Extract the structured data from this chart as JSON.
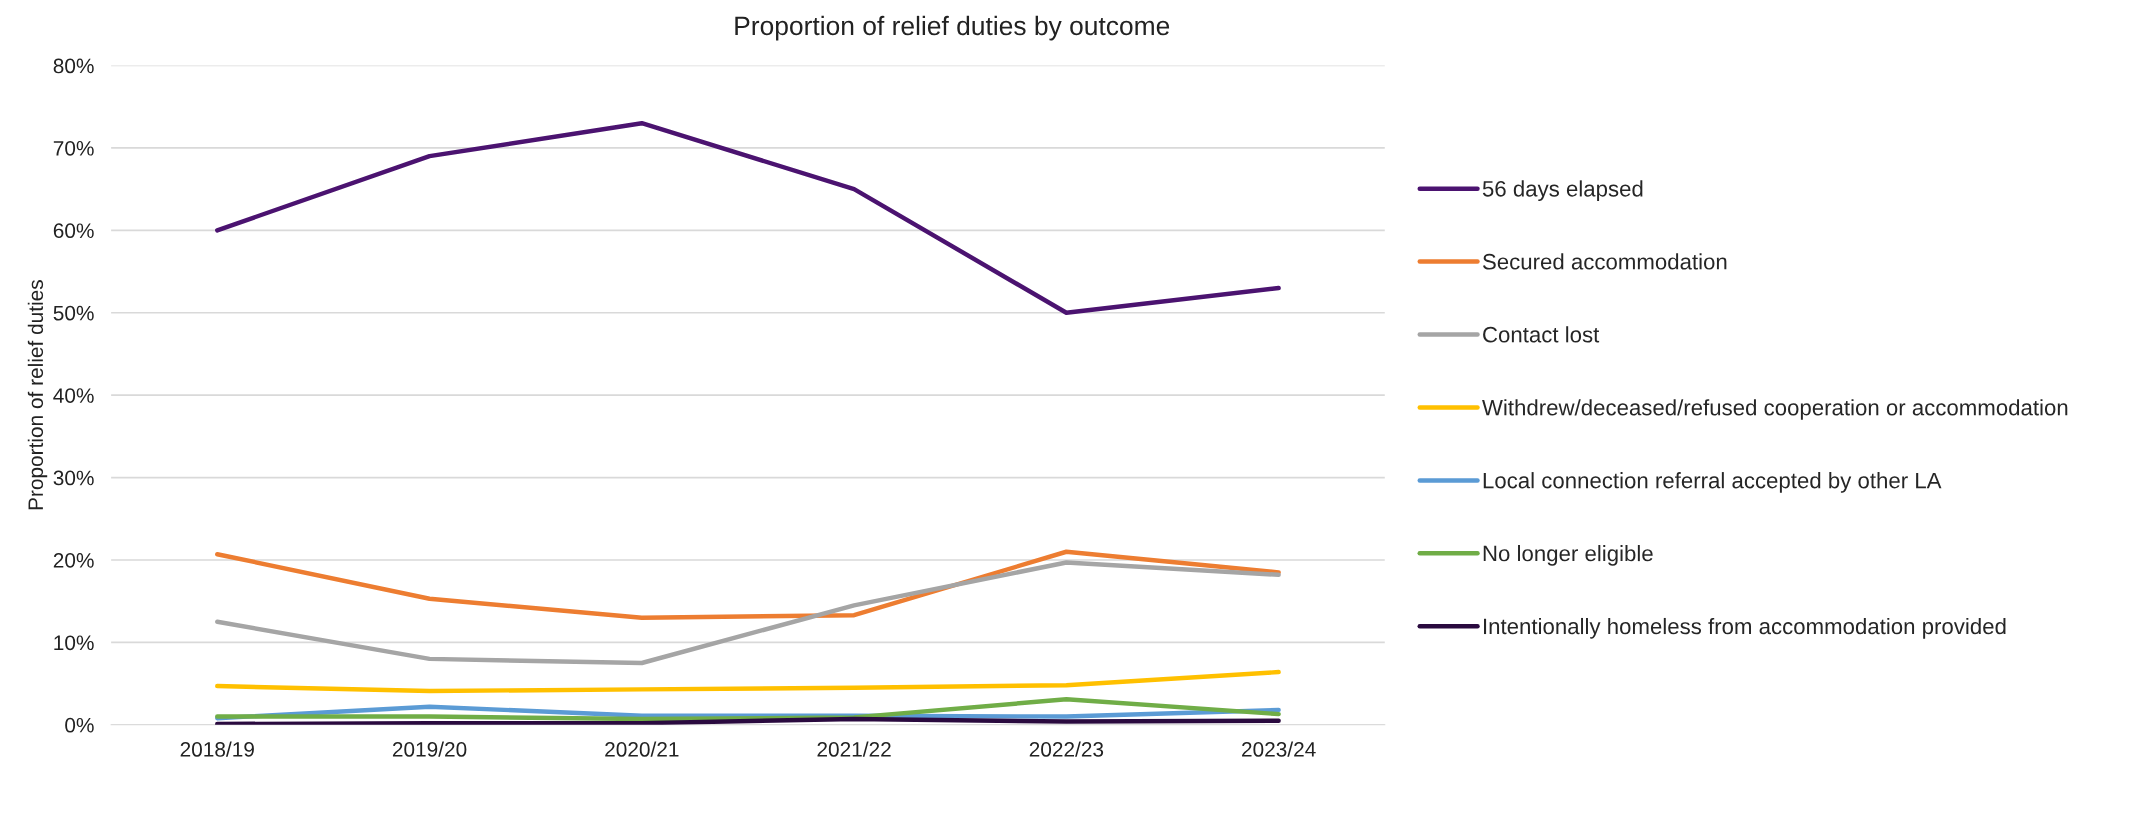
{
  "chart_data": {
    "type": "line",
    "title": "Proportion of relief duties by outcome",
    "ylabel": "Proportion of relief duties",
    "categories": [
      "2018/19",
      "2019/20",
      "2020/21",
      "2021/22",
      "2022/23",
      "2023/24"
    ],
    "ylim": [
      0,
      80
    ],
    "yticks": [
      {
        "value": 0,
        "label": "0%"
      },
      {
        "value": 10,
        "label": "10%"
      },
      {
        "value": 20,
        "label": "20%"
      },
      {
        "value": 30,
        "label": "30%"
      },
      {
        "value": 40,
        "label": "40%"
      },
      {
        "value": 50,
        "label": "50%"
      },
      {
        "value": 60,
        "label": "60%"
      },
      {
        "value": 70,
        "label": "70%"
      },
      {
        "value": 80,
        "label": "80%"
      }
    ],
    "grid": "y",
    "legend": "right",
    "marker": "none",
    "line_style": "solid",
    "series": [
      {
        "name": "56 days elapsed",
        "color": "#4b1370",
        "values": [
          60,
          69,
          73,
          65,
          50,
          53
        ]
      },
      {
        "name": "Secured accommodation",
        "color": "#ed7d31",
        "values": [
          20.7,
          15.3,
          13,
          13.3,
          21,
          18.5
        ]
      },
      {
        "name": "Contact lost",
        "color": "#a5a5a5",
        "values": [
          12.5,
          8,
          7.5,
          14.5,
          19.7,
          18.2
        ]
      },
      {
        "name": "Withdrew/deceased/refused cooperation or accommodation",
        "color": "#ffc000",
        "values": [
          4.7,
          4.1,
          4.3,
          4.5,
          4.8,
          6.4
        ]
      },
      {
        "name": "Local connection referral accepted by other LA",
        "color": "#5b9bd5",
        "values": [
          0.8,
          2.2,
          1.1,
          1.1,
          1.0,
          1.8
        ]
      },
      {
        "name": "No longer eligible",
        "color": "#70ad47",
        "values": [
          1.0,
          1.0,
          0.7,
          0.9,
          3.1,
          1.3
        ]
      },
      {
        "name": "Intentionally homeless from accommodation provided",
        "color": "#2a0a3f",
        "values": [
          0.1,
          0.2,
          0.2,
          0.7,
          0.4,
          0.5
        ]
      }
    ]
  }
}
